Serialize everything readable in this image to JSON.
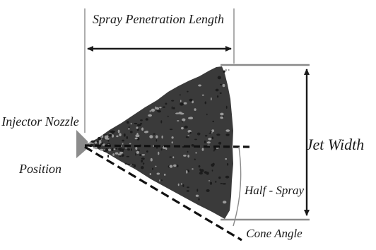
{
  "labels": {
    "penetration_length": "Spray Penetration Length",
    "nozzle_line1": "Injector Nozzle",
    "nozzle_line2": "Position",
    "jet_width": "Jet Width",
    "half_spray": "Half - Spray",
    "cone_angle": "Cone Angle"
  },
  "colors": {
    "line": "#1a1a1a",
    "spray_fill": "#3a3a3a",
    "spray_dark": "#1c1c1c",
    "nozzle": "#8c8c8c",
    "guide": "#8a8a8a"
  }
}
